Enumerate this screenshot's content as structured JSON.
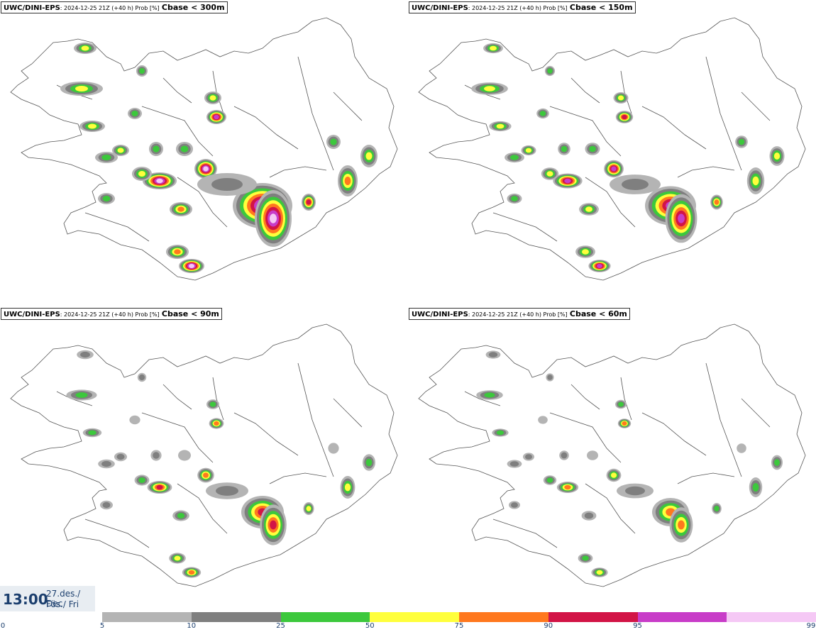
{
  "panels": [
    {
      "source": "UWC/DINI-EPS",
      "meta": ": 2024-12-25 21Z (+40 h) Prob [%]",
      "label": "Cbase < 300m"
    },
    {
      "source": "UWC/DINI-EPS",
      "meta": ": 2024-12-25 21Z (+40 h) Prob [%]",
      "label": "Cbase < 150m"
    },
    {
      "source": "UWC/DINI-EPS",
      "meta": ": 2024-12-25 21Z (+40 h) Prob [%]",
      "label": "Cbase < 90m"
    },
    {
      "source": "UWC/DINI-EPS",
      "meta": ": 2024-12-25 21Z (+40 h) Prob [%]",
      "label": "Cbase < 60m"
    }
  ],
  "time": {
    "clock": "13:00",
    "date": "27.des./ Dec",
    "day": "Fös./ Fri"
  },
  "colorbar": {
    "ticks": [
      "0",
      "5",
      "10",
      "25",
      "50",
      "75",
      "90",
      "95",
      "99"
    ],
    "colors": [
      "#b4b4b4",
      "#7f7f7f",
      "#3cc83c",
      "#ffff3c",
      "#ff781e",
      "#d21446",
      "#c83cc8",
      "#f5c8f5"
    ]
  },
  "colors": {
    "coast": "#555555",
    "accent": "#1c3f6e"
  }
}
